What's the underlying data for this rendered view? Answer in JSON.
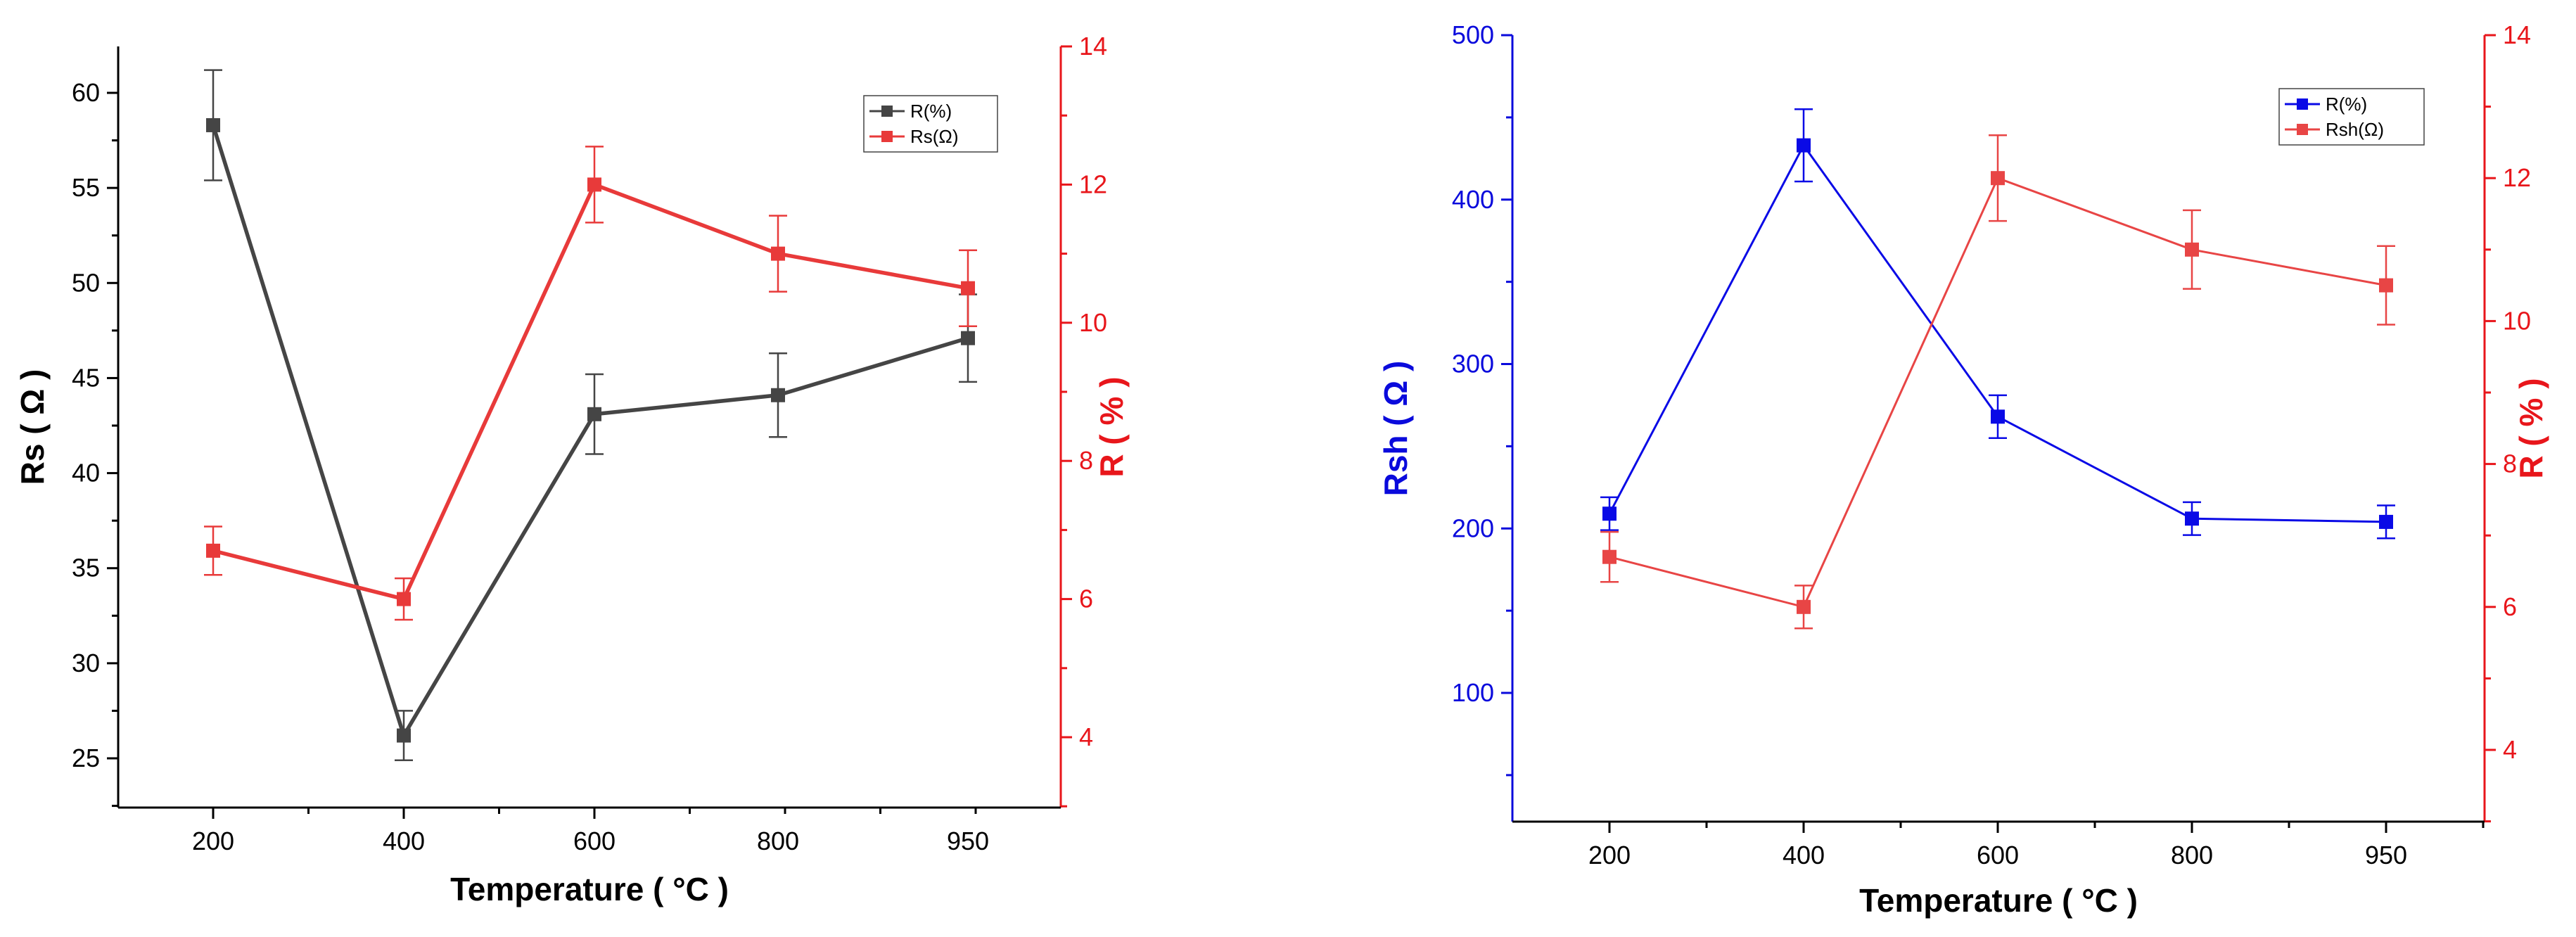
{
  "chart_data": [
    {
      "type": "line",
      "xlabel": "Temperature ( °C )",
      "x": [
        200,
        400,
        600,
        800,
        950
      ],
      "x_tick_labels": [
        "200",
        "400",
        "600",
        "800",
        "950"
      ],
      "y_left": {
        "label": "Rs ( Ω )",
        "ticks": [
          25,
          30,
          35,
          40,
          45,
          50,
          55,
          60
        ],
        "color": "#000000"
      },
      "y_right": {
        "label": "R ( % )",
        "ticks": [
          4,
          6,
          8,
          10,
          12,
          14
        ],
        "color": "#e8161b"
      },
      "series": [
        {
          "name": "R(%)",
          "axis": "left",
          "color": "#454545",
          "values": [
            58.3,
            26.2,
            43.1,
            44.1,
            47.1
          ],
          "errors": [
            2.9,
            1.3,
            2.1,
            2.2,
            2.3
          ]
        },
        {
          "name": "Rs(Ω)",
          "axis": "right",
          "color": "#e83a3a",
          "values": [
            6.7,
            6.0,
            12.0,
            11.0,
            10.5
          ],
          "errors": [
            0.35,
            0.3,
            0.55,
            0.55,
            0.55
          ]
        }
      ],
      "legend": "top-right"
    },
    {
      "type": "line",
      "xlabel": "Temperature ( °C )",
      "x": [
        200,
        400,
        600,
        800,
        950
      ],
      "x_tick_labels": [
        "200",
        "400",
        "600",
        "800",
        "950"
      ],
      "y_left": {
        "label": "Rsh ( Ω )",
        "ticks": [
          100,
          200,
          300,
          400,
          500
        ],
        "color": "#0a0adc"
      },
      "y_right": {
        "label": "R ( % )",
        "ticks": [
          4,
          6,
          8,
          10,
          12,
          14
        ],
        "color": "#e8161b"
      },
      "series": [
        {
          "name": "R(%)",
          "axis": "left",
          "color": "#0a0ae6",
          "values": [
            209,
            433,
            268,
            206,
            204
          ],
          "errors": [
            10,
            22,
            13,
            10,
            10
          ]
        },
        {
          "name": "Rsh(Ω)",
          "axis": "right",
          "color": "#e84545",
          "values": [
            6.7,
            6.0,
            12.0,
            11.0,
            10.5
          ],
          "errors": [
            0.35,
            0.3,
            0.6,
            0.55,
            0.55
          ]
        }
      ],
      "legend": "top-right"
    }
  ]
}
